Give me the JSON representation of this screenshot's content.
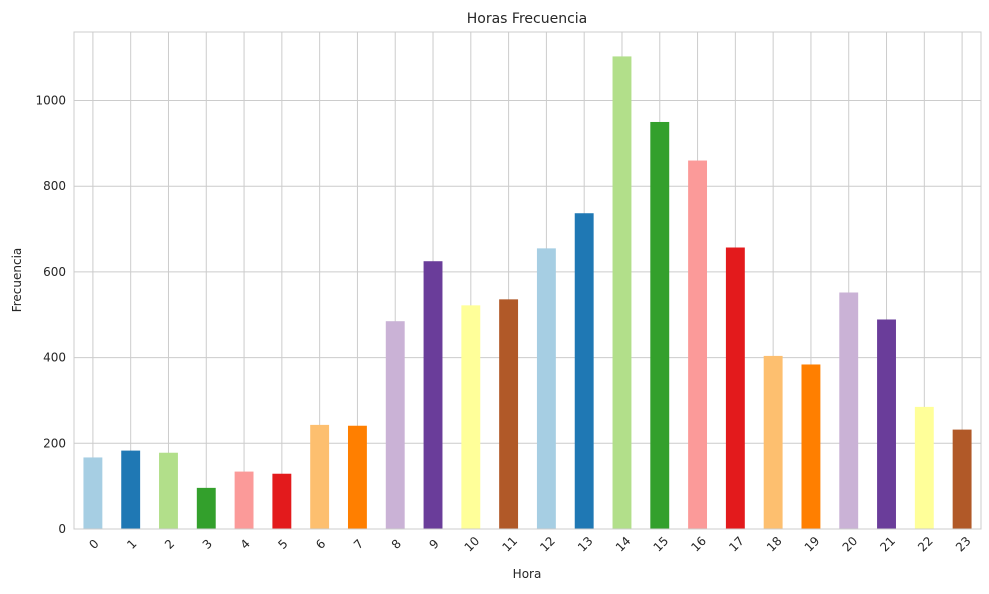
{
  "chart_data": {
    "type": "bar",
    "title": "Horas Frecuencia",
    "xlabel": "Hora",
    "ylabel": "Frecuencia",
    "categories": [
      "0",
      "1",
      "2",
      "3",
      "4",
      "5",
      "6",
      "7",
      "8",
      "9",
      "10",
      "11",
      "12",
      "13",
      "14",
      "15",
      "16",
      "17",
      "18",
      "19",
      "20",
      "21",
      "22",
      "23"
    ],
    "values": [
      167,
      183,
      178,
      96,
      134,
      129,
      243,
      241,
      485,
      625,
      522,
      536,
      655,
      737,
      1103,
      950,
      860,
      657,
      404,
      384,
      552,
      489,
      285,
      232
    ],
    "colors": [
      "#a6cee3",
      "#1f78b4",
      "#b2df8a",
      "#33a02c",
      "#fb9a99",
      "#e31a1c",
      "#fdbf6f",
      "#ff7f00",
      "#cab2d6",
      "#6a3d9a",
      "#ffff99",
      "#b15928",
      "#a6cee3",
      "#1f78b4",
      "#b2df8a",
      "#33a02c",
      "#fb9a99",
      "#e31a1c",
      "#fdbf6f",
      "#ff7f00",
      "#cab2d6",
      "#6a3d9a",
      "#ffff99",
      "#b15928"
    ],
    "ylim": [
      0,
      1160
    ],
    "yticks": [
      0,
      200,
      400,
      600,
      800,
      1000
    ],
    "grid": true,
    "legend": "none",
    "xtick_rotation": -45
  }
}
